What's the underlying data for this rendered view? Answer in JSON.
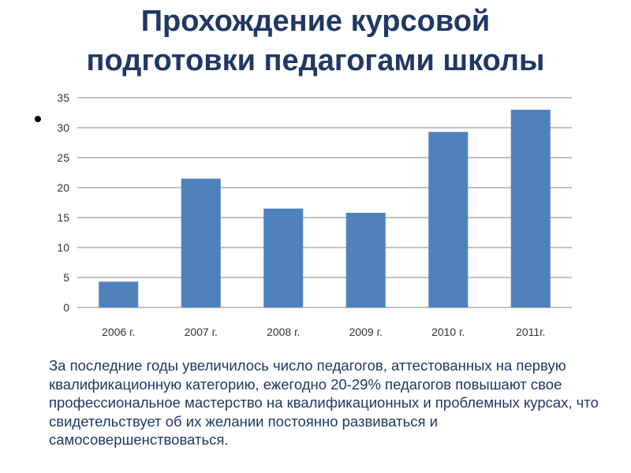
{
  "title_line1": "Прохождение курсовой",
  "title_line2": "подготовки педагогами школы",
  "caption": "За последние годы увеличилось число педагогов, аттестованных на первую квалификационную категорию, ежегодно 20-29%  педагогов повышают свое профессиональное мастерство на квалификационных и проблемных курсах, что свидетельствует об их желании постоянно развиваться и самосовершенствоваться.",
  "colors": {
    "bar": "#4f81bd",
    "title": "#1f3864",
    "grid": "#868686"
  },
  "chart_data": {
    "type": "bar",
    "categories": [
      "2006 г.",
      "2007 г.",
      "2008 г.",
      "2009 г.",
      "2010 г.",
      "2011г."
    ],
    "values": [
      4.3,
      21.5,
      16.5,
      15.8,
      29.3,
      33
    ],
    "ylim": [
      0,
      35
    ],
    "yticks": [
      0,
      5,
      10,
      15,
      20,
      25,
      30,
      35
    ],
    "grid": true,
    "legend": "none"
  }
}
